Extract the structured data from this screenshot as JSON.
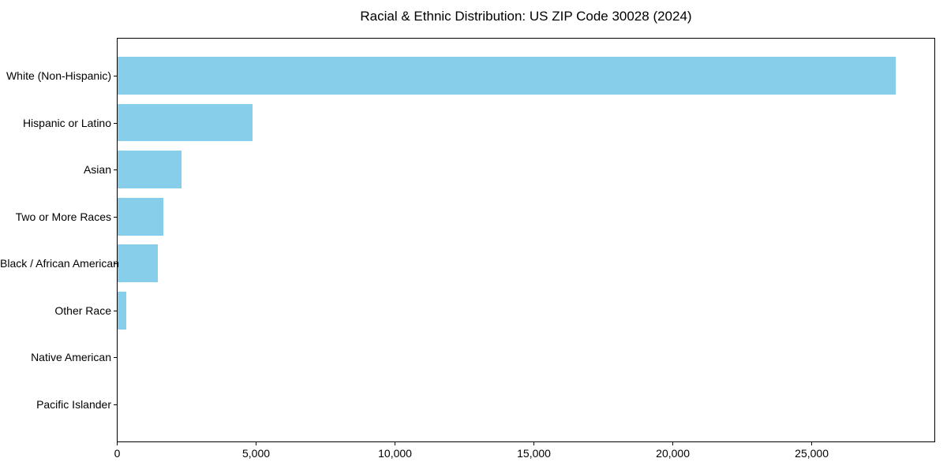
{
  "chart_data": {
    "type": "bar",
    "orientation": "horizontal",
    "title": "Racial & Ethnic Distribution: US ZIP Code 30028 (2024)",
    "categories": [
      "White (Non-Hispanic)",
      "Hispanic or Latino",
      "Asian",
      "Two or More Races",
      "Black / African American",
      "Other Race",
      "Native American",
      "Pacific Islander"
    ],
    "values": [
      28000,
      4850,
      2300,
      1650,
      1450,
      300,
      0,
      0
    ],
    "xlabel": "",
    "ylabel": "",
    "xlim": [
      0,
      29400
    ],
    "x_ticks": [
      0,
      5000,
      10000,
      15000,
      20000,
      25000
    ],
    "x_tick_labels": [
      "0",
      "5,000",
      "10,000",
      "15,000",
      "20,000",
      "25,000"
    ],
    "bar_color": "#87CEEB",
    "frame_color": "#000000",
    "text_color": "#000000",
    "grid": false,
    "legend": null
  }
}
